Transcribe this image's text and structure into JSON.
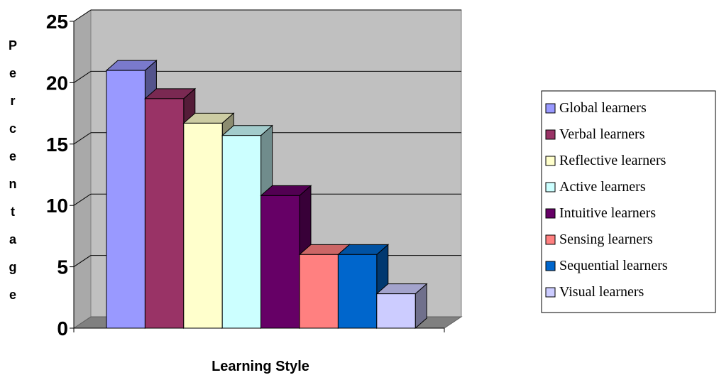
{
  "chart_data": {
    "type": "bar",
    "style": "3d-clustered-column",
    "title": "",
    "xlabel": "Learning Style",
    "ylabel": "Percentage",
    "ylim": [
      0,
      25
    ],
    "yticks": [
      0,
      5,
      10,
      15,
      20,
      25
    ],
    "grid": true,
    "legend_position": "right",
    "categories": [
      ""
    ],
    "series": [
      {
        "name": "Global learners",
        "values": [
          21
        ],
        "color": "#9999ff"
      },
      {
        "name": "Verbal learners",
        "values": [
          18.7
        ],
        "color": "#993366"
      },
      {
        "name": "Reflective learners",
        "values": [
          16.7
        ],
        "color": "#ffffcc"
      },
      {
        "name": "Active  learners",
        "values": [
          15.7
        ],
        "color": "#ccffff"
      },
      {
        "name": "Intuitive learners",
        "values": [
          10.8
        ],
        "color": "#660066"
      },
      {
        "name": "Sensing learners",
        "values": [
          6
        ],
        "color": "#ff8080"
      },
      {
        "name": "Sequential learners",
        "values": [
          6
        ],
        "color": "#0066cc"
      },
      {
        "name": "Visual learners",
        "values": [
          2.8
        ],
        "color": "#ccccff"
      }
    ],
    "wall_color": "#c0c0c0",
    "floor_color": "#808080"
  }
}
